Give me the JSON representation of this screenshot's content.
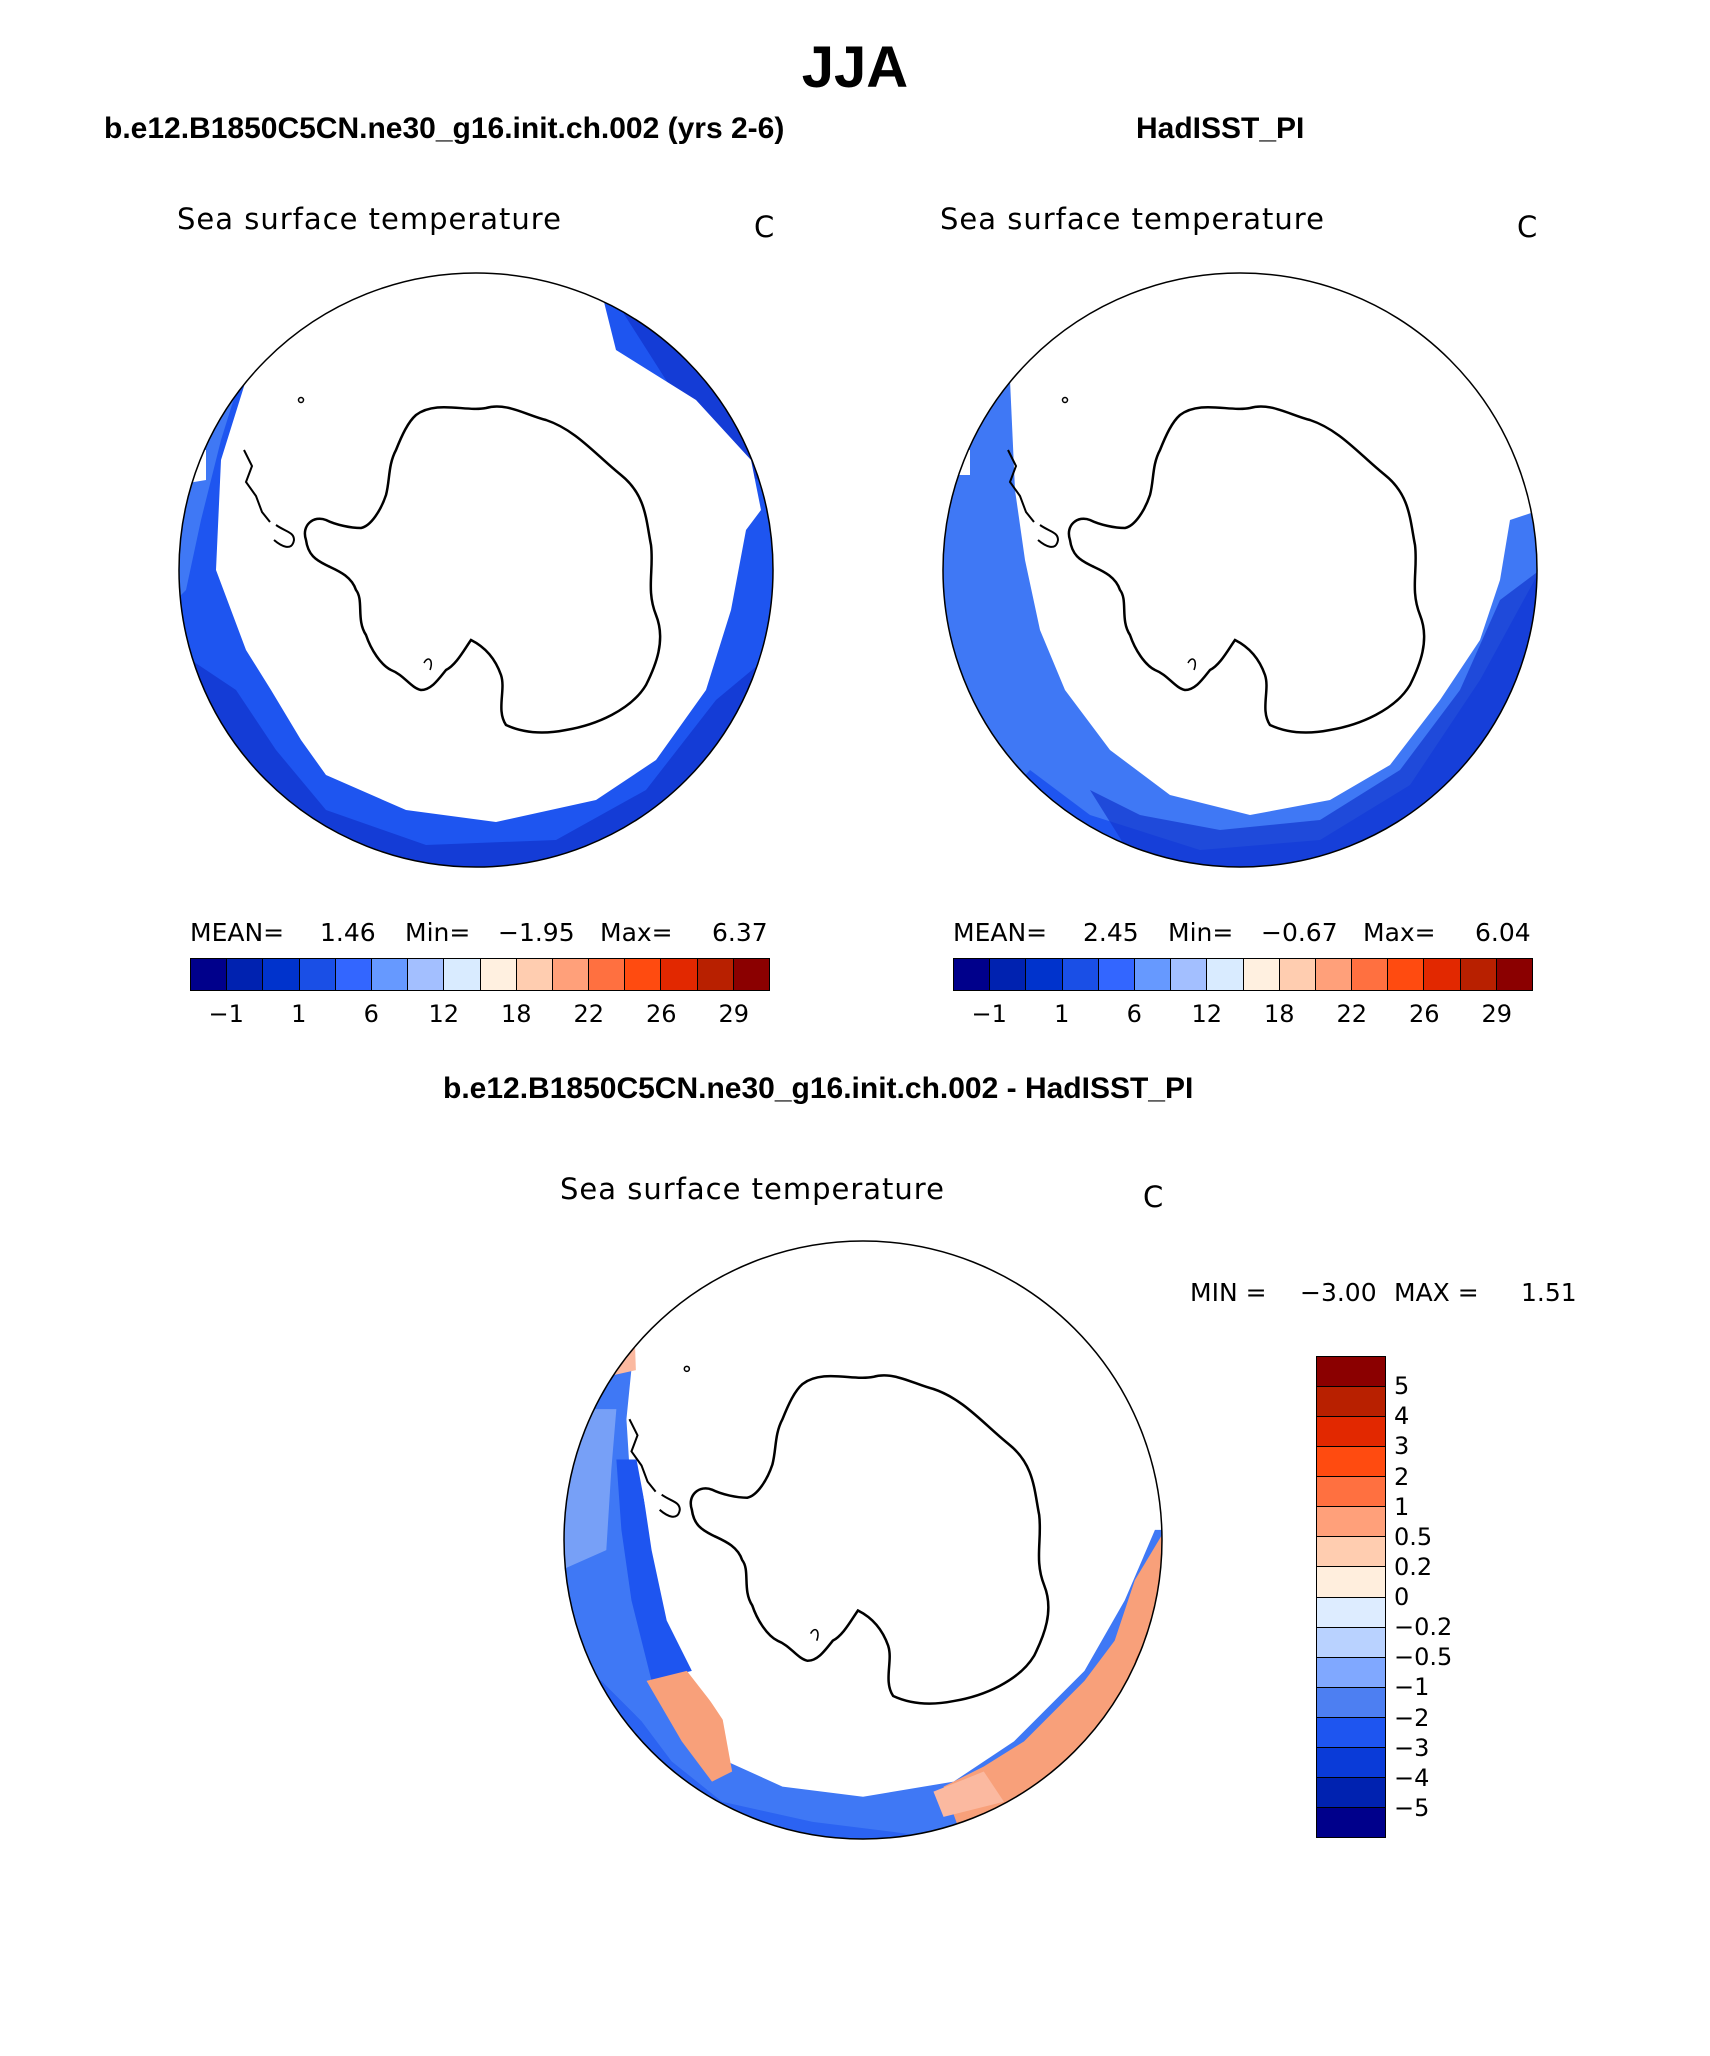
{
  "title": "JJA",
  "panels": {
    "model": {
      "title": "b.e12.B1850C5CN.ne30_g16.init.ch.002 (yrs 2-6)",
      "label": "Sea surface temperature",
      "units": "C",
      "mean_label": "MEAN=",
      "mean": "1.46",
      "min_label": "Min=",
      "min": "−1.95",
      "max_label": "Max=",
      "max": "6.37"
    },
    "obs": {
      "title": "HadISST_PI",
      "label": "Sea surface temperature",
      "units": "C",
      "mean_label": "MEAN=",
      "mean": "2.45",
      "min_label": "Min=",
      "min": "−0.67",
      "max_label": "Max=",
      "max": "6.04"
    },
    "diff": {
      "title": "b.e12.B1850C5CN.ne30_g16.init.ch.002 - HadISST_PI",
      "label": "Sea surface temperature",
      "units": "C",
      "min_label": "MIN =",
      "min": "−3.00",
      "max_label": "MAX =",
      "max": "1.51"
    }
  },
  "sst_colorbar": {
    "colors": [
      "#00008b",
      "#0022b0",
      "#0033cc",
      "#1a4fe6",
      "#3366ff",
      "#6699ff",
      "#a3bfff",
      "#d9ebff",
      "#fff0e0",
      "#ffcdb0",
      "#ffa07a",
      "#ff7040",
      "#ff4b10",
      "#e22800",
      "#b82000",
      "#8b0000"
    ],
    "ticks": [
      "−1",
      "1",
      "6",
      "12",
      "18",
      "22",
      "26",
      "29"
    ]
  },
  "diff_colorbar": {
    "colors": [
      "#8b0000",
      "#b82000",
      "#e22800",
      "#ff4b10",
      "#ff7040",
      "#ffa07a",
      "#ffcdb0",
      "#ffeedd",
      "#ddecff",
      "#b9d2ff",
      "#80a8ff",
      "#4d7ff2",
      "#1e55f0",
      "#0a3bd8",
      "#0022b0",
      "#00008b"
    ],
    "ticks": [
      "5",
      "4",
      "3",
      "2",
      "1",
      "0.5",
      "0.2",
      "0",
      "−0.2",
      "−0.5",
      "−1",
      "−2",
      "−3",
      "−4",
      "−5"
    ]
  },
  "colors": {
    "deep_blue": "#1236cf",
    "mid_blue": "#1e55f0",
    "light_blue": "#3f78f5",
    "pale_blue": "#86aaf7",
    "pale_orange": "#fbb9a0",
    "orange": "#f8a07a"
  }
}
